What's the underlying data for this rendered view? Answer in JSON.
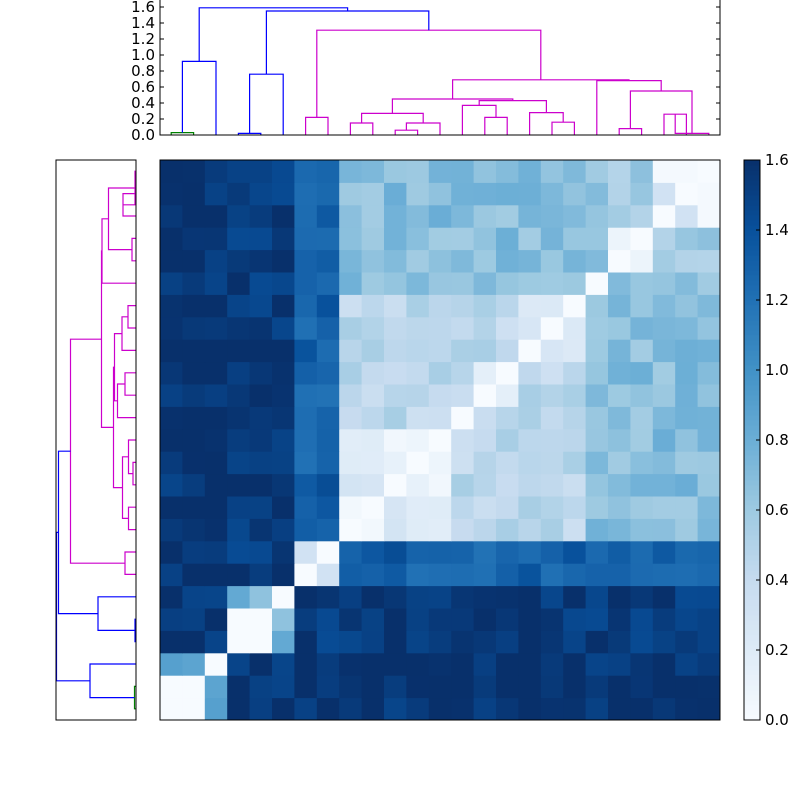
{
  "chart_data": {
    "type": "heatmap",
    "title": "",
    "xlabel": "",
    "ylabel": "",
    "n": 25,
    "order": [
      21,
      23,
      22,
      19,
      24,
      20,
      16,
      2,
      6,
      14,
      1,
      17,
      12,
      13,
      8,
      18,
      0,
      5,
      10,
      7,
      4,
      11,
      15,
      3,
      9
    ],
    "groups": [
      4,
      4,
      3,
      3,
      2,
      1,
      1,
      1,
      1,
      1,
      1,
      1,
      1,
      1,
      1,
      1,
      1,
      1,
      1,
      1,
      1,
      1,
      1,
      1,
      1
    ],
    "group_colors": [
      "#0000ff",
      "#cc00cc",
      "#00bfbf",
      "#ff0000",
      "#008000"
    ],
    "cluster_spread": 0.12,
    "color_scale": {
      "min": 0.0,
      "max": 1.6,
      "colormap": "Blues",
      "ticks": [
        "0.0",
        "0.2",
        "0.4",
        "0.6",
        "0.8",
        "1.0",
        "1.2",
        "1.4",
        "1.6"
      ]
    },
    "dendrogram": {
      "ylim": [
        0,
        1.6
      ],
      "ticks": [
        "0.0",
        "0.2",
        "0.4",
        "0.6",
        "0.8",
        "1.0",
        "1.2",
        "1.4",
        "1.6"
      ],
      "links": [
        {
          "a": [
            0
          ],
          "b": [
            1
          ],
          "h": 0.03
        },
        {
          "a": [
            0,
            1
          ],
          "b": [
            2
          ],
          "h": 0.92
        },
        {
          "a": [
            3
          ],
          "b": [
            4
          ],
          "h": 0.02
        },
        {
          "a": [
            3,
            4
          ],
          "b": [
            5
          ],
          "h": 0.76
        },
        {
          "a": [
            6
          ],
          "b": [
            7
          ],
          "h": 0.22
        },
        {
          "a": [
            8
          ],
          "b": [
            9
          ],
          "h": 0.15
        },
        {
          "a": [
            10
          ],
          "b": [
            11
          ],
          "h": 0.06
        },
        {
          "a": [
            10,
            11
          ],
          "b": [
            12
          ],
          "h": 0.15
        },
        {
          "a": [
            8,
            9
          ],
          "b": [
            10,
            11,
            12
          ],
          "h": 0.27
        },
        {
          "a": [
            14
          ],
          "b": [
            15
          ],
          "h": 0.22
        },
        {
          "a": [
            13
          ],
          "b": [
            14,
            15
          ],
          "h": 0.37
        },
        {
          "a": [
            17
          ],
          "b": [
            18
          ],
          "h": 0.16
        },
        {
          "a": [
            16
          ],
          "b": [
            17,
            18
          ],
          "h": 0.28
        },
        {
          "a": [
            13,
            14,
            15
          ],
          "b": [
            16,
            17,
            18
          ],
          "h": 0.43
        },
        {
          "a": [
            8,
            9,
            10,
            11,
            12
          ],
          "b": [
            13,
            14,
            15,
            16,
            17,
            18
          ],
          "h": 0.45
        },
        {
          "a": [
            20
          ],
          "b": [
            21
          ],
          "h": 0.08
        },
        {
          "a": [
            22
          ],
          "b": [
            23
          ],
          "h": 0.26
        },
        {
          "a": [
            22,
            23
          ],
          "b": [
            24
          ],
          "h": 0.02
        },
        {
          "a": [
            20,
            21
          ],
          "b": [
            22,
            23,
            24
          ],
          "h": 0.55
        },
        {
          "a": [
            19
          ],
          "b": [
            20,
            21,
            22,
            23,
            24
          ],
          "h": 0.68
        },
        {
          "a": [
            8,
            9,
            10,
            11,
            12,
            13,
            14,
            15,
            16,
            17,
            18
          ],
          "b": [
            19,
            20,
            21,
            22,
            23,
            24
          ],
          "h": 0.69
        },
        {
          "a": [
            6,
            7
          ],
          "b": [
            8,
            9,
            10,
            11,
            12,
            13,
            14,
            15,
            16,
            17,
            18,
            19,
            20,
            21,
            22,
            23,
            24
          ],
          "h": 1.31
        },
        {
          "a": [
            3,
            4,
            5
          ],
          "b": [
            6,
            7,
            8,
            9,
            10,
            11,
            12,
            13,
            14,
            15,
            16,
            17,
            18,
            19,
            20,
            21,
            22,
            23,
            24
          ],
          "h": 1.55
        },
        {
          "a": [
            0,
            1,
            2
          ],
          "b": [
            3,
            4,
            5,
            6,
            7,
            8,
            9,
            10,
            11,
            12,
            13,
            14,
            15,
            16,
            17,
            18,
            19,
            20,
            21,
            22,
            23,
            24
          ],
          "h": 1.59
        }
      ]
    }
  }
}
